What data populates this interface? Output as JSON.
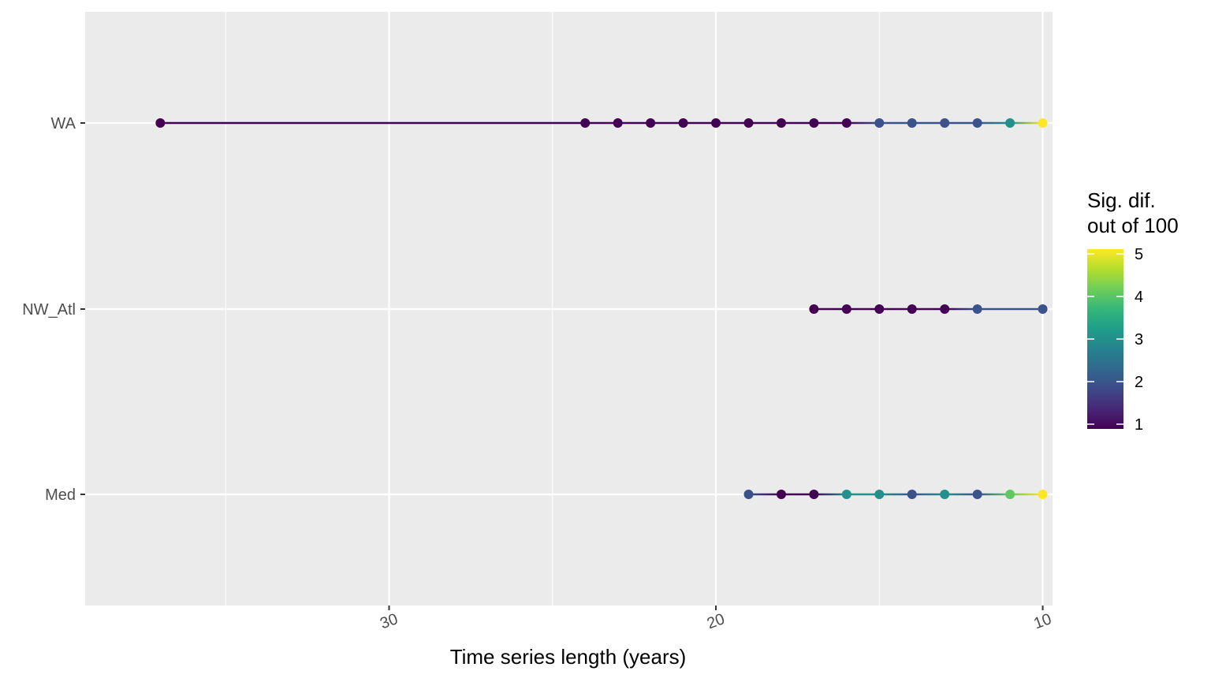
{
  "chart_data": {
    "type": "line",
    "xlabel": "Time series length (years)",
    "x_reversed": true,
    "xlim": [
      9.7,
      39.3
    ],
    "x_major_ticks": [
      30,
      20,
      10
    ],
    "x_tick_labels": [
      "30",
      "20",
      "10"
    ],
    "categories": [
      "WA",
      "NW_Atl",
      "Med"
    ],
    "grid": true,
    "legend": {
      "title_lines": [
        "Sig. dif.",
        "out of 100"
      ],
      "placement": "right",
      "ticks": [
        1,
        2,
        3,
        4,
        5
      ],
      "tick_labels": [
        "1",
        "2",
        "3",
        "4",
        "5"
      ],
      "range": [
        1,
        5
      ]
    },
    "colors": {
      "panel": "#EBEBEB",
      "grid": "#FFFFFF",
      "viridis": [
        "#440154",
        "#482878",
        "#3E4A89",
        "#31688E",
        "#26828E",
        "#1F9E89",
        "#35B779",
        "#6DCD59",
        "#B4DE2C",
        "#FDE725"
      ]
    },
    "series": [
      {
        "name": "WA",
        "x": [
          37,
          24,
          23,
          22,
          21,
          20,
          19,
          18,
          17,
          16,
          15,
          14,
          13,
          12,
          11,
          10
        ],
        "values": [
          1,
          1,
          1,
          1,
          1,
          1,
          1,
          1,
          1,
          1,
          2,
          2,
          2,
          2,
          3,
          5
        ]
      },
      {
        "name": "NW_Atl",
        "x": [
          17,
          16,
          15,
          14,
          13,
          12,
          10
        ],
        "values": [
          1,
          1,
          1,
          1,
          1,
          2,
          2
        ]
      },
      {
        "name": "Med",
        "x": [
          19,
          18,
          17,
          16,
          15,
          14,
          13,
          12,
          11,
          10
        ],
        "values": [
          2,
          1,
          1,
          3,
          3,
          2,
          3,
          2,
          4,
          5
        ]
      }
    ]
  }
}
